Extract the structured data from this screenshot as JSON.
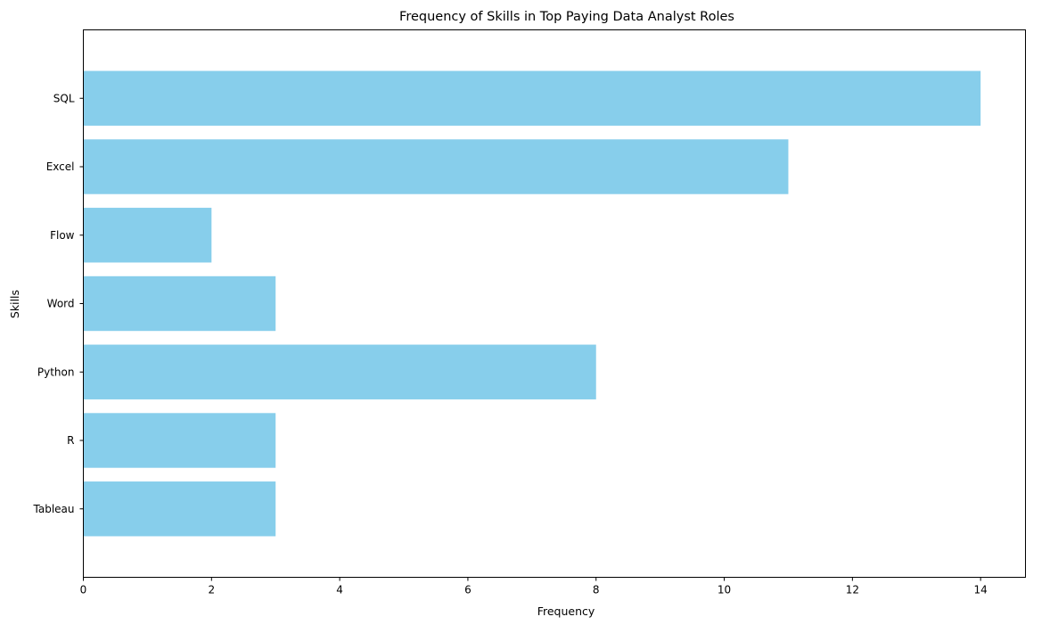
{
  "chart_data": {
    "type": "bar",
    "orientation": "horizontal",
    "title": "Frequency of Skills in Top Paying Data Analyst Roles",
    "xlabel": "Frequency",
    "ylabel": "Skills",
    "categories": [
      "SQL",
      "Excel",
      "Flow",
      "Word",
      "Python",
      "R",
      "Tableau"
    ],
    "values": [
      14,
      11,
      2,
      3,
      8,
      3,
      3
    ],
    "xlim": [
      0,
      14.7
    ],
    "xticks": [
      0,
      2,
      4,
      6,
      8,
      10,
      12,
      14
    ],
    "bar_color": "#87CEEB",
    "grid": false,
    "legend": "none"
  }
}
